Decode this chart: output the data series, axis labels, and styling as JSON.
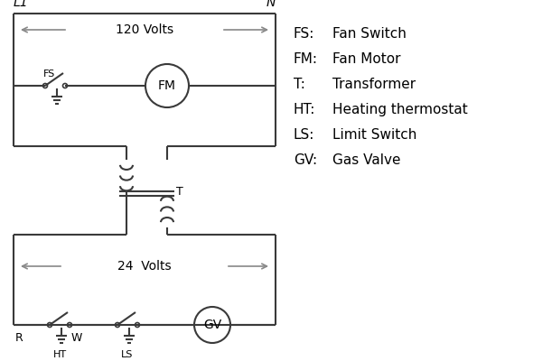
{
  "bg_color": "#ffffff",
  "line_color": "#3a3a3a",
  "arrow_color": "#888888",
  "line_width": 1.5,
  "legend_items": [
    [
      "FS:",
      "Fan Switch"
    ],
    [
      "FM:",
      "Fan Motor"
    ],
    [
      "T:",
      "Transformer"
    ],
    [
      "HT:",
      "Heating thermostat"
    ],
    [
      "LS:",
      "Limit Switch"
    ],
    [
      "GV:",
      "Gas Valve"
    ]
  ],
  "label_L1": "L1",
  "label_N": "N",
  "label_120V": "120 Volts",
  "label_24V": "24  Volts",
  "label_T": "T",
  "label_FS": "FS",
  "label_FM": "FM",
  "label_GV": "GV",
  "label_R": "R",
  "label_W": "W",
  "label_HT": "HT",
  "label_LS": "LS"
}
